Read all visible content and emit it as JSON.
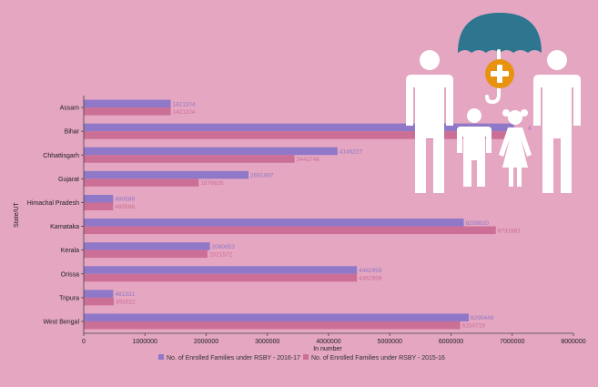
{
  "chart_data": {
    "type": "bar",
    "orientation": "horizontal",
    "categories": [
      "Assam",
      "Bihar",
      "Chhattisgarh",
      "Gujarat",
      "Himachal Pradesh",
      "Karnataka",
      "Kerala",
      "Orissa",
      "Tripura",
      "West Bengal"
    ],
    "series": [
      {
        "name": "No. of Enrolled Families under RSBY - 2016-17",
        "color": "#8f78c8",
        "values": [
          1421104,
          7030000,
          4146227,
          2691497,
          480588,
          6208620,
          2060953,
          4462959,
          481331,
          6290448
        ],
        "labels": [
          "1421104",
          "",
          "4146227",
          "2691497",
          "480588",
          "6208620",
          "2060953",
          "4462959",
          "481331",
          "6290448"
        ]
      },
      {
        "name": "No. of Enrolled Families under RSBY - 2015-16",
        "color": "#cc6f96",
        "values": [
          1421104,
          7000000,
          3442748,
          1876626,
          480588,
          6731881,
          2021572,
          4462959,
          492022,
          6150716
        ],
        "labels": [
          "1421104",
          "",
          "3442748",
          "1876626",
          "480588",
          "6731881",
          "2021572",
          "4462959",
          "492022",
          "6150716"
        ]
      }
    ],
    "xlabel": "In number",
    "ylabel": "State/UT",
    "xlim": [
      0,
      8000000
    ],
    "xticks": [
      0,
      1000000,
      2000000,
      3000000,
      4000000,
      5000000,
      6000000,
      7000000,
      8000000
    ],
    "grid": false,
    "legend": "bottom",
    "bihar_label_fragment": "4"
  },
  "illustration": {
    "icon": "family-health-insurance-icon",
    "umbrella_color": "#2e7590",
    "cross_color": "#e8920f"
  }
}
